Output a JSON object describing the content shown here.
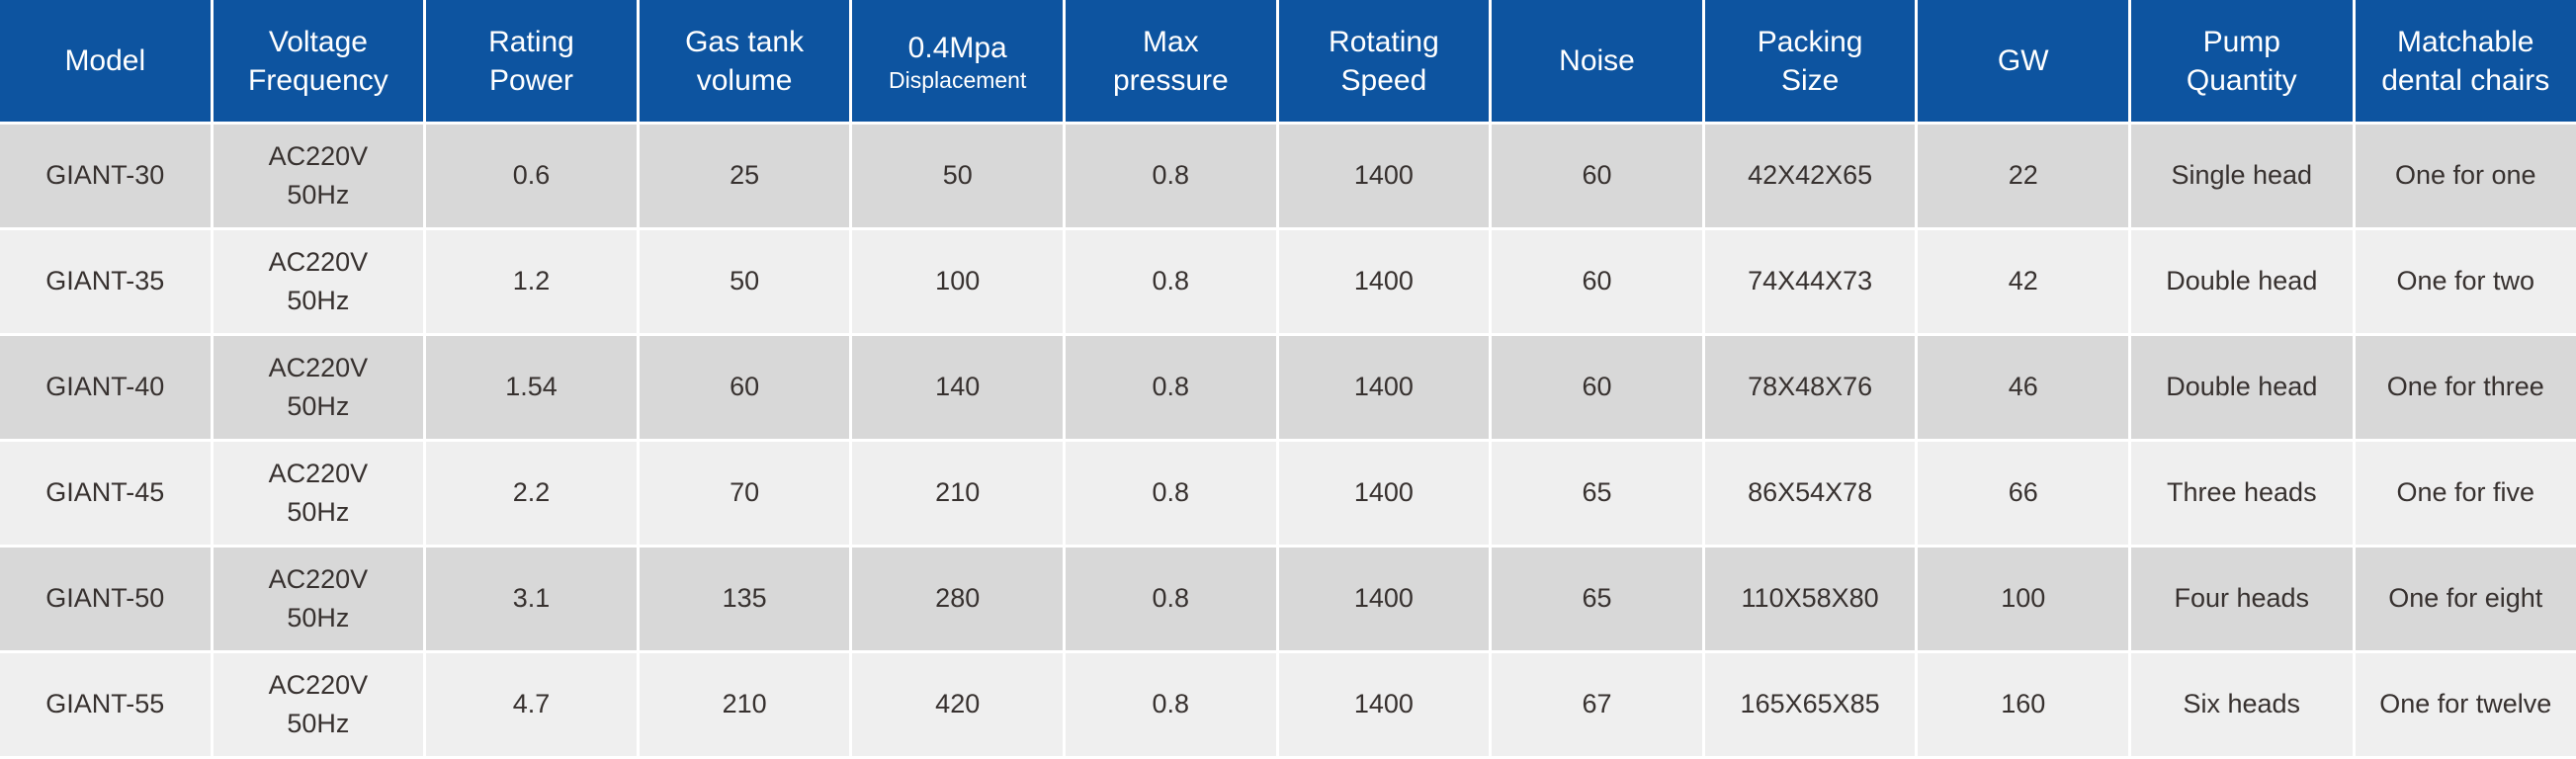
{
  "table": {
    "columns": [
      {
        "key": "model",
        "lines": [
          "Model"
        ]
      },
      {
        "key": "voltage-frequency",
        "lines": [
          "Voltage",
          "Frequency"
        ]
      },
      {
        "key": "rating-power",
        "lines": [
          "Rating",
          "Power"
        ]
      },
      {
        "key": "gas-tank-volume",
        "lines": [
          "Gas tank",
          "volume"
        ]
      },
      {
        "key": "displacement",
        "lines": [
          "0.4Mpa",
          "Displacement"
        ],
        "second_line_small": true
      },
      {
        "key": "max-pressure",
        "lines": [
          "Max",
          "pressure"
        ]
      },
      {
        "key": "rotating-speed",
        "lines": [
          "Rotating",
          "Speed"
        ]
      },
      {
        "key": "noise",
        "lines": [
          "Noise"
        ]
      },
      {
        "key": "packing-size",
        "lines": [
          "Packing",
          "Size"
        ]
      },
      {
        "key": "gw",
        "lines": [
          "GW"
        ]
      },
      {
        "key": "pump-quantity",
        "lines": [
          "Pump",
          "Quantity"
        ]
      },
      {
        "key": "matchable-dental-chairs",
        "lines": [
          "Matchable",
          "dental chairs"
        ]
      }
    ],
    "rows": [
      {
        "model": "GIANT-30",
        "cells": [
          [
            "GIANT-30"
          ],
          [
            "AC220V",
            "50Hz"
          ],
          [
            "0.6"
          ],
          [
            "25"
          ],
          [
            "50"
          ],
          [
            "0.8"
          ],
          [
            "1400"
          ],
          [
            "60"
          ],
          [
            "42X42X65"
          ],
          [
            "22"
          ],
          [
            "Single head"
          ],
          [
            "One for one"
          ]
        ]
      },
      {
        "model": "GIANT-35",
        "cells": [
          [
            "GIANT-35"
          ],
          [
            "AC220V",
            "50Hz"
          ],
          [
            "1.2"
          ],
          [
            "50"
          ],
          [
            "100"
          ],
          [
            "0.8"
          ],
          [
            "1400"
          ],
          [
            "60"
          ],
          [
            "74X44X73"
          ],
          [
            "42"
          ],
          [
            "Double head"
          ],
          [
            "One for two"
          ]
        ]
      },
      {
        "model": "GIANT-40",
        "cells": [
          [
            "GIANT-40"
          ],
          [
            "AC220V",
            "50Hz"
          ],
          [
            "1.54"
          ],
          [
            "60"
          ],
          [
            "140"
          ],
          [
            "0.8"
          ],
          [
            "1400"
          ],
          [
            "60"
          ],
          [
            "78X48X76"
          ],
          [
            "46"
          ],
          [
            "Double head"
          ],
          [
            "One for three"
          ]
        ]
      },
      {
        "model": "GIANT-45",
        "cells": [
          [
            "GIANT-45"
          ],
          [
            "AC220V",
            "50Hz"
          ],
          [
            "2.2"
          ],
          [
            "70"
          ],
          [
            "210"
          ],
          [
            "0.8"
          ],
          [
            "1400"
          ],
          [
            "65"
          ],
          [
            "86X54X78"
          ],
          [
            "66"
          ],
          [
            "Three heads"
          ],
          [
            "One for five"
          ]
        ]
      },
      {
        "model": "GIANT-50",
        "cells": [
          [
            "GIANT-50"
          ],
          [
            "AC220V",
            "50Hz"
          ],
          [
            "3.1"
          ],
          [
            "135"
          ],
          [
            "280"
          ],
          [
            "0.8"
          ],
          [
            "1400"
          ],
          [
            "65"
          ],
          [
            "110X58X80"
          ],
          [
            "100"
          ],
          [
            "Four heads"
          ],
          [
            "One for eight"
          ]
        ]
      },
      {
        "model": "GIANT-55",
        "cells": [
          [
            "GIANT-55"
          ],
          [
            "AC220V",
            "50Hz"
          ],
          [
            "4.7"
          ],
          [
            "210"
          ],
          [
            "420"
          ],
          [
            "0.8"
          ],
          [
            "1400"
          ],
          [
            "67"
          ],
          [
            "165X65X85"
          ],
          [
            "160"
          ],
          [
            "Six heads"
          ],
          [
            "One for twelve"
          ]
        ]
      }
    ]
  },
  "colors": {
    "header_bg": "#0d54a0",
    "header_text": "#ffffff",
    "row_odd_bg": "#d8d8d8",
    "row_even_bg": "#efefef",
    "cell_text": "#37312f",
    "divider": "#ffffff"
  }
}
